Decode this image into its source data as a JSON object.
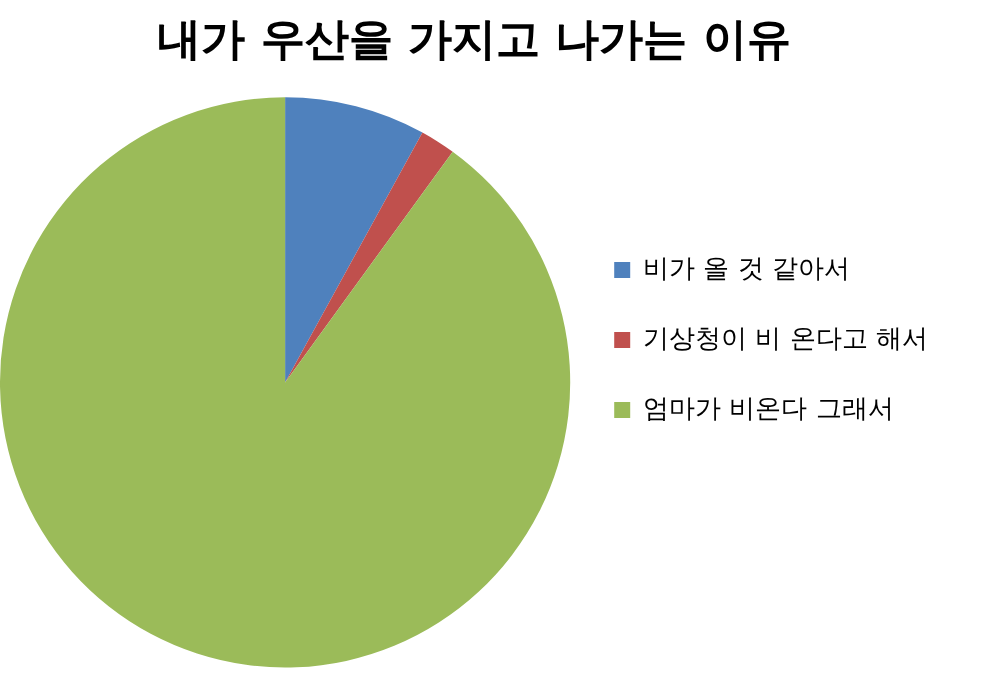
{
  "chart_data": {
    "type": "pie",
    "title": "내가 우산을 가지고 나가는 이유",
    "categories": [
      "비가 올 것 같아서",
      "기상청이 비 온다고 해서",
      "엄마가 비온다 그래서"
    ],
    "values": [
      8,
      2,
      90
    ],
    "colors": [
      "#4f81bd",
      "#c0504d",
      "#9bbb59"
    ],
    "legend": "right"
  }
}
